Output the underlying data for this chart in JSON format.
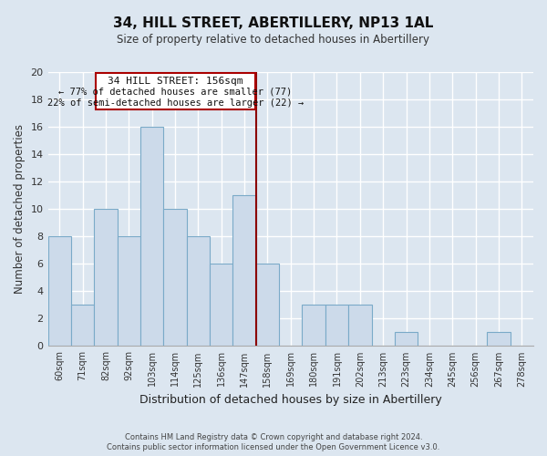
{
  "title": "34, HILL STREET, ABERTILLERY, NP13 1AL",
  "subtitle": "Size of property relative to detached houses in Abertillery",
  "xlabel": "Distribution of detached houses by size in Abertillery",
  "ylabel": "Number of detached properties",
  "categories": [
    "60sqm",
    "71sqm",
    "82sqm",
    "92sqm",
    "103sqm",
    "114sqm",
    "125sqm",
    "136sqm",
    "147sqm",
    "158sqm",
    "169sqm",
    "180sqm",
    "191sqm",
    "202sqm",
    "213sqm",
    "223sqm",
    "234sqm",
    "245sqm",
    "256sqm",
    "267sqm",
    "278sqm"
  ],
  "values": [
    8,
    3,
    10,
    8,
    16,
    10,
    8,
    6,
    11,
    6,
    0,
    3,
    3,
    3,
    0,
    1,
    0,
    0,
    0,
    1,
    0
  ],
  "bar_color": "#ccdaea",
  "bar_edgecolor": "#7aaac8",
  "grid_color": "#c8d4e0",
  "bg_color": "#dce6f0",
  "ylim": [
    0,
    20
  ],
  "yticks": [
    0,
    2,
    4,
    6,
    8,
    10,
    12,
    14,
    16,
    18,
    20
  ],
  "vline_color": "#8b0000",
  "annotation_title": "34 HILL STREET: 156sqm",
  "annotation_line1": "← 77% of detached houses are smaller (77)",
  "annotation_line2": "22% of semi-detached houses are larger (22) →",
  "footer1": "Contains HM Land Registry data © Crown copyright and database right 2024.",
  "footer2": "Contains public sector information licensed under the Open Government Licence v3.0."
}
